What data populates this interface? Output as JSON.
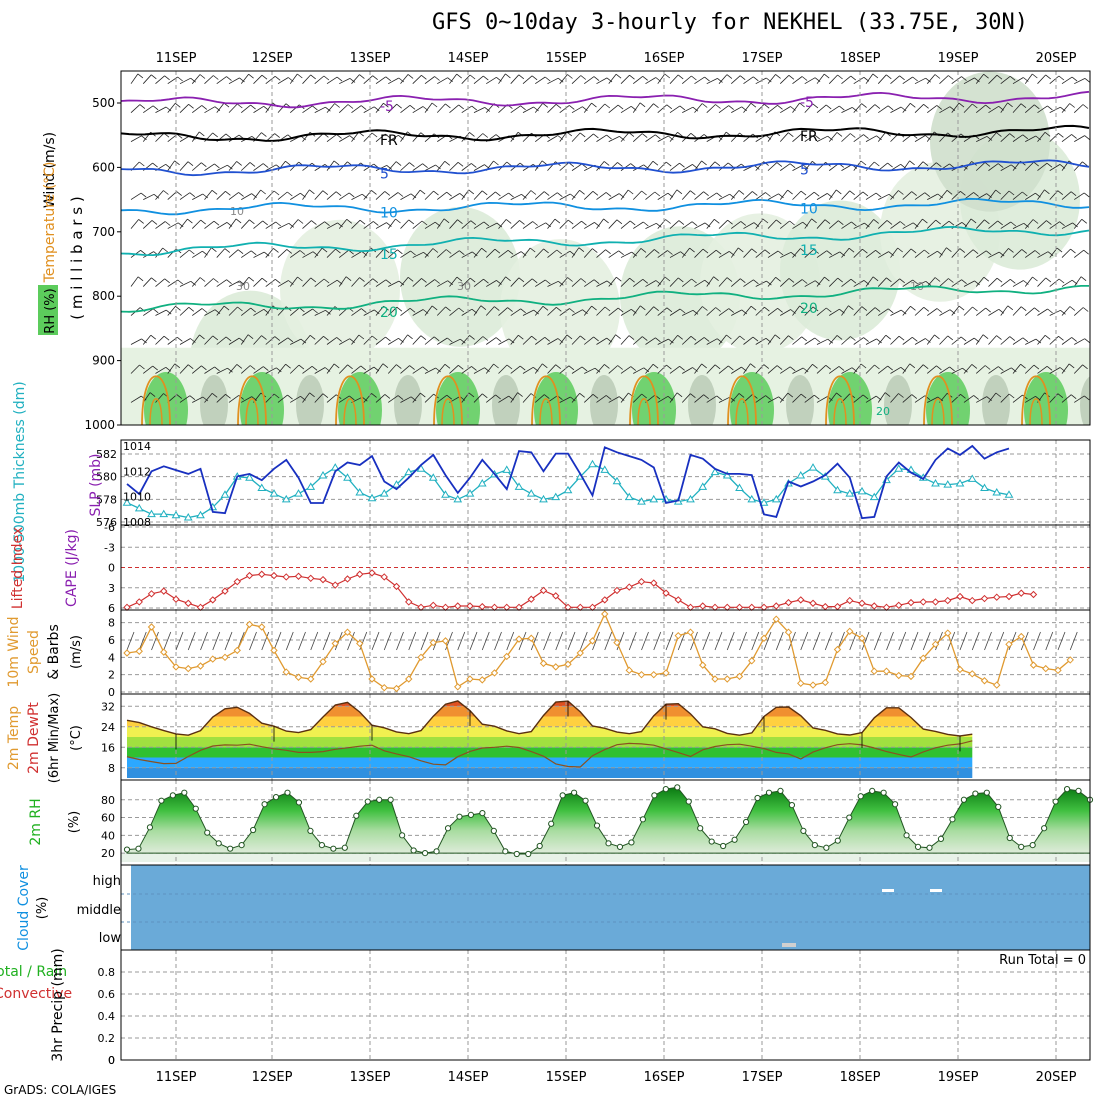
{
  "title": "GFS 0~10day 3-hourly for NEKHEL (33.75E, 30N)",
  "footer": "GrADS: COLA/IGES",
  "dates": [
    "11SEP",
    "12SEP",
    "13SEP",
    "14SEP",
    "15SEP",
    "16SEP",
    "17SEP",
    "18SEP",
    "19SEP",
    "20SEP"
  ],
  "colors": {
    "temp_purple": "#8a20b0",
    "freezing": "#000000",
    "temp_blue": "#2050d0",
    "temp_lightblue": "#1090e0",
    "temp_cyan": "#10b0b0",
    "temp_green": "#10b080",
    "conv_orange": "#e09020",
    "rh_light": "#e4f0e4",
    "rh_green": "#5ccc5c",
    "slp_blue": "#1830c0",
    "thick_cyan": "#20b0c0",
    "li_red": "#d03030",
    "wind_orange": "#e09a30",
    "cloud_blue": "#6aaad8",
    "rh2m_green": "#20b020"
  },
  "chart_data": [
    {
      "type": "line",
      "name": "upper-air cross section",
      "ylabel_parts": [
        "RH (%)",
        "Temperature (°C)",
        "Wind (m/s)"
      ],
      "y_axis_label": "( m i l l i b a r s )",
      "yticks": [
        500,
        600,
        700,
        800,
        900,
        1000
      ],
      "ylim": [
        1000,
        450
      ],
      "isotherms": [
        {
          "label": "-5",
          "pressure_mb": 500
        },
        {
          "label": "FR",
          "pressure_mb": 553
        },
        {
          "label": "5",
          "pressure_mb": 605
        },
        {
          "label": "10",
          "pressure_mb": 665
        },
        {
          "label": "15",
          "pressure_mb": 730
        },
        {
          "label": "20",
          "pressure_mb": 820
        }
      ],
      "rh_contour_labels": [
        "30",
        "30",
        "10",
        "10",
        "20"
      ]
    },
    {
      "type": "line",
      "name": "sea level pressure and thickness",
      "ylabel_left": "1000-500mb Thickness (dm)",
      "ylabel_right": "SLP (mb)",
      "yticks_left": [
        576,
        578,
        580,
        582
      ],
      "yticks_right": [
        1008,
        1010,
        1012,
        1014
      ],
      "series": [
        {
          "name": "SLP (mb)",
          "values": [
            1011.0,
            1010.2,
            1012.0,
            1012.4,
            1012.1,
            1011.8,
            1012.2,
            1008.8,
            1008.7,
            1011.6,
            1011.8,
            1011.3,
            1012.2,
            1012.9,
            1011.5,
            1009.5,
            1009.5,
            1012.0,
            1012.7,
            1012.5,
            1013.2,
            1011.2,
            1010.6,
            1011.5,
            1012.5,
            1013.3,
            1011.7,
            1010.3,
            1011.5,
            1012.9,
            1011.8,
            1010.6,
            1013.6,
            1013.5,
            1012.0,
            1013.4,
            1013.4,
            1011.8,
            1010.1,
            1013.9,
            1013.5,
            1013.2,
            1012.9,
            1012.3,
            1009.5,
            1009.7,
            1013.3,
            1013.0,
            1012.2,
            1011.8,
            1011.8,
            1011.7,
            1008.6,
            1008.4,
            1011.2,
            1010.8,
            1011.2,
            1011.7,
            1012.6,
            1011.5,
            1008.3,
            1008.4,
            1011.6,
            1012.7,
            1011.9,
            1011.4,
            1012.9,
            1013.8,
            1013.3,
            1014.0,
            1013.0,
            1013.5,
            1013.8
          ]
        },
        {
          "name": "1000-500mb Thickness (dm)",
          "values": [
            577.7,
            577.2,
            576.7,
            576.7,
            576.6,
            576.4,
            576.6,
            577.3,
            578.4,
            580.0,
            579.9,
            579.0,
            578.5,
            578.0,
            578.5,
            579.1,
            580.1,
            580.8,
            579.9,
            578.6,
            578.1,
            578.5,
            579.3,
            580.4,
            580.7,
            579.9,
            578.4,
            578.0,
            578.5,
            579.4,
            580.2,
            580.6,
            579.1,
            578.5,
            578.0,
            578.2,
            578.8,
            580.0,
            581.1,
            580.6,
            579.6,
            578.2,
            577.8,
            578.0,
            578.0,
            577.8,
            578.0,
            579.1,
            580.4,
            580.1,
            579.0,
            578.0,
            577.7,
            578.0,
            579.4,
            580.1,
            580.8,
            580.0,
            578.8,
            578.5,
            578.7,
            578.2,
            579.7,
            580.7,
            580.6,
            579.9,
            579.4,
            579.3,
            579.4,
            579.8,
            579.0,
            578.6,
            578.4
          ]
        }
      ]
    },
    {
      "type": "line",
      "name": "lifted index and CAPE",
      "ylabel_left": "Lifted Index",
      "ylabel_right": "CAPE (J/kg)",
      "yticks": [
        -6,
        -3,
        0,
        3,
        6
      ],
      "series": [
        {
          "name": "Lifted Index",
          "values": [
            5.9,
            5.1,
            3.9,
            3.5,
            4.7,
            5.3,
            5.9,
            4.8,
            3.5,
            2.1,
            1.2,
            1.0,
            1.2,
            1.4,
            1.3,
            1.6,
            1.8,
            2.6,
            1.7,
            1.0,
            0.8,
            1.4,
            2.8,
            5.1,
            5.9,
            5.6,
            5.9,
            5.7,
            5.7,
            5.8,
            5.9,
            5.9,
            5.9,
            4.7,
            3.4,
            4.2,
            5.9,
            5.9,
            5.9,
            4.8,
            3.4,
            2.9,
            2.1,
            2.3,
            3.8,
            4.8,
            5.9,
            5.7,
            5.9,
            5.9,
            5.9,
            5.9,
            5.9,
            5.7,
            5.2,
            4.8,
            5.3,
            5.8,
            5.8,
            4.9,
            5.3,
            5.7,
            5.9,
            5.6,
            5.2,
            5.1,
            5.1,
            4.9,
            4.3,
            4.9,
            4.6,
            4.4,
            4.3,
            3.8,
            4.0
          ]
        }
      ]
    },
    {
      "type": "line",
      "name": "10m wind",
      "ylabel": "10m Wind Speed & Barbs (m/s)",
      "yticks": [
        0,
        2,
        4,
        6,
        8
      ],
      "series": [
        {
          "name": "Speed",
          "values": [
            4.5,
            4.7,
            7.5,
            4.6,
            2.9,
            2.7,
            3.0,
            3.8,
            4.0,
            4.8,
            7.8,
            7.5,
            4.8,
            2.3,
            1.7,
            1.5,
            3.5,
            5.6,
            6.9,
            5.6,
            1.5,
            0.5,
            0.4,
            1.5,
            4.0,
            5.7,
            5.9,
            0.6,
            1.5,
            1.4,
            2.2,
            4.1,
            6.1,
            6.2,
            3.3,
            2.9,
            3.2,
            4.5,
            5.9,
            9.0,
            5.7,
            2.5,
            2.0,
            2.0,
            2.2,
            6.5,
            6.9,
            3.1,
            1.5,
            1.5,
            1.8,
            3.6,
            6.2,
            8.4,
            6.9,
            1.0,
            0.8,
            1.1,
            4.9,
            7.0,
            6.2,
            2.4,
            2.4,
            1.9,
            1.8,
            3.9,
            5.5,
            6.8,
            2.6,
            2.1,
            1.3,
            0.8,
            5.5,
            6.4,
            3.1,
            2.7,
            2.5,
            3.7
          ]
        }
      ]
    },
    {
      "type": "area",
      "name": "2m temperature",
      "ylabel": "2m Temp 2m DewPt (6hr Min/Max) (°C)",
      "yticks": [
        8,
        16,
        24,
        32
      ],
      "series": [
        {
          "name": "2m Temp",
          "values": [
            26.5,
            25.6,
            24.0,
            22.5,
            21.2,
            20.7,
            22.5,
            27.8,
            31.0,
            31.6,
            29.2,
            25.4,
            24.2,
            22.3,
            21.7,
            22.9,
            27.8,
            32.5,
            33.5,
            29.7,
            24.6,
            23.6,
            22.0,
            21.3,
            22.5,
            28.1,
            32.8,
            34.1,
            30.3,
            25.0,
            24.2,
            22.4,
            21.3,
            22.1,
            28.4,
            33.6,
            34.0,
            29.8,
            24.3,
            23.4,
            21.9,
            21.3,
            22.1,
            28.3,
            32.8,
            33.0,
            29.0,
            24.0,
            23.2,
            21.4,
            20.7,
            21.6,
            28.0,
            31.6,
            31.7,
            28.3,
            23.5,
            22.6,
            21.2,
            20.8,
            21.7,
            27.5,
            31.4,
            31.4,
            27.6,
            23.1,
            22.2,
            21.0,
            20.4,
            21.1
          ]
        },
        {
          "name": "2m DewPt",
          "values": [
            12.3,
            11.2,
            10.4,
            9.6,
            9.7,
            12.4,
            14.8,
            16.5,
            16.9,
            16.8,
            17.2,
            16.2,
            15.4,
            14.8,
            14.0,
            14.0,
            14.3,
            15.2,
            15.8,
            16.4,
            16.8,
            14.6,
            13.4,
            12.3,
            10.7,
            9.4,
            9.1,
            12.3,
            14.4,
            15.7,
            16.0,
            16.4,
            15.9,
            14.3,
            12.5,
            9.5,
            8.5,
            8.3,
            12.7,
            15.1,
            17.0,
            17.5,
            17.3,
            16.8,
            15.4,
            13.9,
            12.4,
            15.0,
            16.3,
            17.0,
            17.2,
            16.4,
            15.5,
            14.0,
            13.4,
            11.4,
            14.1,
            15.8,
            17.0,
            17.4,
            16.9,
            15.7,
            14.3,
            13.2,
            12.2,
            14.2,
            15.8,
            16.8,
            17.3,
            18.5
          ]
        }
      ]
    },
    {
      "type": "area",
      "name": "2m relative humidity",
      "ylabel": "2m RH (%)",
      "yticks": [
        20,
        40,
        60,
        80
      ],
      "series": [
        {
          "name": "2m RH",
          "values": [
            24,
            25,
            49,
            79,
            85,
            88,
            70,
            43,
            31,
            25,
            29,
            46,
            75,
            83,
            88,
            77,
            45,
            29,
            25,
            26,
            62,
            78,
            80,
            80,
            40,
            23,
            20,
            22,
            48,
            61,
            63,
            65,
            45,
            22,
            19,
            19,
            28,
            53,
            85,
            88,
            79,
            51,
            31,
            27,
            32,
            58,
            85,
            92,
            94,
            78,
            48,
            33,
            28,
            35,
            55,
            82,
            88,
            90,
            74,
            45,
            29,
            26,
            34,
            60,
            84,
            90,
            88,
            75,
            40,
            27,
            26,
            36,
            58,
            80,
            87,
            88,
            72,
            37,
            27,
            29,
            48,
            78,
            92,
            90,
            80
          ]
        }
      ]
    },
    {
      "type": "heatmap",
      "name": "cloud cover",
      "ylabel": "Cloud Cover (%)",
      "levels": [
        "high",
        "middle",
        "low"
      ]
    },
    {
      "type": "bar",
      "name": "3hr precipitation",
      "ylabel_left": "Total / Rain",
      "ylabel_left2": "Convective",
      "ylabel": "3hr Precip (mm)",
      "yticks": [
        0,
        0.2,
        0.4,
        0.6,
        0.8
      ],
      "annotation": "Run Total = 0",
      "values": []
    }
  ]
}
